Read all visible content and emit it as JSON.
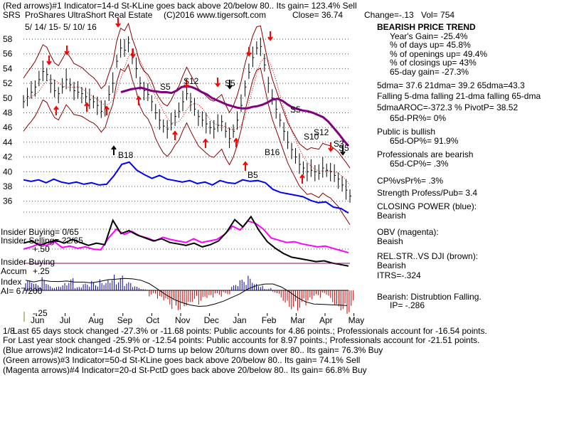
{
  "header": {
    "line1": "(Red arrows)#1 Indicator=14-d St-KLine goes back above 20/below 80.. Its gain= 123.4% Sell",
    "ticker": "SRS",
    "name": "ProShares UltraShort Real Estate",
    "copyright": "(C)2016 www.tigersoft.com",
    "close": "Close=  36.74",
    "change": "Change=-.13",
    "vol": "Vol= 754",
    "date_range": "5/ 14/ 15- 5/ 10/ 16"
  },
  "side_panel": {
    "trend_title": "BEARISH PRICE TREND",
    "years_gain": "Year's Gain= -25.4%",
    "pct_days_up": "% of days up= 45.8%",
    "pct_openings_up": "% of openings up= 49.4%",
    "pct_closings_up": "% of closings up= 43%",
    "gain_65d": "65-day gain= -27.3%",
    "dma": "5dma= 37.6  21dma= 39.2  65dma=43.3",
    "falling": "Falling 5-dma  falling 21-dma  falling 65-dma",
    "aroc": "5dmaAROC=-372.3 %   PivotP= 38.52",
    "pr": "65d-PR%= 0%",
    "public": "Public is bullish",
    "op": "65d-OP%= 91.9%",
    "professionals": "Professionals are bearish",
    "cp": "65d-CP%= .3%",
    "cpvspr": "CP%vsPr%=  .3%",
    "strength": "Strength Profess/Pub= 3.4",
    "closing_power_label": "CLOSING POWER (blue):",
    "closing_power_value": "Bearish",
    "obv_label": "OBV (magenta):",
    "obv_value": "Beaish",
    "relstr_label": "REL.STR..VS DJI (brown):",
    "relstr_value": "Bearish",
    "itrs": "ITRS=-.324",
    "accum_label": "Bearish: Distrubtion Falling.",
    "ip": "IP= -.286"
  },
  "left_labels": {
    "insider_buying_ratio": "Insider Buying= 0/65",
    "insider_selling_ratio": "Insider Selling= 22/65",
    "plus_50": "+.50",
    "insider_buying": "Insider Buying",
    "accum": "Accum",
    "plus_25": "+.25",
    "index": "Index",
    "ai": "AI= 67/200",
    "minus_25": "-.25"
  },
  "signal_labels": {
    "s5": "S5",
    "s12": "S12",
    "b18": "B18",
    "b5": "B5",
    "b16": "B16",
    "s10": "S10",
    "s3": "S3"
  },
  "bottom_text": {
    "line1": "Last 65 days stock changed -27.3% or -11.68 points:  Public accounts for  4.86 points.;  Professionals account for -16.54 points.",
    "line2": "For Last year stock changed -25.9% or -12.54 points:  Public accounts for  8.97 points.;  Professionals account for -21.51 points.",
    "line3": "(Blue arrows)#2 Indicator=14-d St-Pct-D turns up below 20/turns down over 80.. Its gain= 76.3% Buy",
    "line4": "(Green arrows)#3 Indicator=50-d St-KLine goes back above 20/below 80.. Its gain= 74.1% Sell",
    "line5": "(Magenta arrows)#4 Indicator=20-d St-PctD goes back above 20/below 80.. Its gain= 66.8% Buy",
    "overlap": "1/8"
  },
  "chart_data": {
    "type": "line",
    "ylim": [
      35,
      59
    ],
    "y_ticks": [
      36,
      38,
      40,
      42,
      44,
      46,
      48,
      50,
      52,
      54,
      56,
      58
    ],
    "x_ticks": [
      "Jun",
      "Jul",
      "Aug",
      "Sep",
      "Oct",
      "Nov",
      "Dec",
      "Jan",
      "Feb",
      "Mar",
      "Apr",
      "May"
    ],
    "grid": true,
    "colors": {
      "price": "#000000",
      "ma": "#800080",
      "bands": "#8b0000",
      "closing_power": "#0000ff",
      "obv": "#ff00ff",
      "relstr": "#000000",
      "arrows_red": "#ff0000",
      "accum_pos": "#0000aa",
      "accum_neg": "#cc0000",
      "grid": "#008000"
    },
    "price_series": [
      49.5,
      50.2,
      50.8,
      51.5,
      52.5,
      53.6,
      53.2,
      52.0,
      51.0,
      50.6,
      51.5,
      52.5,
      51.8,
      51.0,
      50.8,
      50.6,
      50.2,
      49.8,
      49.5,
      49.0,
      48.2,
      48.8,
      50.5,
      52.0,
      55.0,
      56.8,
      56.5,
      57.5,
      55.5,
      54.0,
      52.0,
      51.0,
      50.5,
      49.5,
      48.0,
      47.0,
      46.2,
      45.8,
      46.5,
      47.5,
      48.2,
      49.5,
      50.6,
      49.5,
      48.5,
      47.5,
      47.0,
      46.5,
      46.0,
      45.8,
      46.3,
      46.8,
      45.5,
      44.5,
      45.5,
      47.0,
      49.0,
      51.5,
      53.5,
      55.5,
      56.8,
      57.0,
      54.5,
      52.0,
      50.0,
      48.5,
      47.0,
      45.5,
      44.0,
      43.0,
      42.0,
      41.0,
      40.5,
      40.0,
      40.2,
      40.0,
      39.8,
      40.5,
      40.2,
      40.0,
      39.5,
      39.0,
      38.2,
      37.5,
      36.7
    ],
    "price_dates_note": "",
    "ma_series": [
      50.8,
      51.0,
      51.2,
      51.3,
      51.4,
      51.2,
      51.0,
      50.9,
      50.8,
      50.8,
      50.7,
      51.0,
      51.5,
      51.6,
      51.5,
      51.2,
      50.8,
      50.5,
      50.0,
      49.7,
      49.4,
      49.1,
      48.9,
      48.7,
      48.6,
      48.6,
      48.8,
      48.9,
      49.1,
      49.4,
      49.8,
      49.9,
      49.6,
      49.1,
      48.7,
      48.5,
      48.3,
      48.2,
      48.0,
      47.7,
      47.4,
      46.8,
      46.0,
      45.2,
      44.3,
      43.5
    ],
    "closing_power_series": [
      38.9,
      38.7,
      38.9,
      38.5,
      39.0,
      38.6,
      38.4,
      38.6,
      38.3,
      38.5,
      38.2,
      38.3,
      39.5,
      41.0,
      41.3,
      40.2,
      39.6,
      39.1,
      39.5,
      39.0,
      38.8,
      38.6,
      38.8,
      38.4,
      38.6,
      38.2,
      38.8,
      38.5,
      38.4,
      38.9,
      38.7,
      38.8,
      38.5,
      37.6,
      37.2,
      37.0,
      36.8,
      36.6,
      36.1,
      35.8,
      35.9,
      35.2,
      35.0,
      34.4
    ],
    "obv_series": [
      29.5,
      29.8,
      30.2,
      30.0,
      30.5,
      29.7,
      29.9,
      29.6,
      29.8,
      29.5,
      29.4,
      31.0,
      32.2,
      31.5,
      31.9,
      31.3,
      31.0,
      30.6,
      31.1,
      30.8,
      30.6,
      30.4,
      30.9,
      30.4,
      30.6,
      30.8,
      31.5,
      32.6,
      32.1,
      33.3,
      33.0,
      32.2,
      31.0,
      30.7,
      30.4,
      30.5,
      30.2,
      30.0,
      29.8,
      29.9,
      29.6,
      29.3,
      29.0
    ],
    "relstr_series": [
      30.3,
      30.6,
      30.0,
      30.4,
      30.7,
      30.3,
      30.8,
      30.4,
      30.0,
      30.3,
      30.1,
      33.4,
      31.6,
      32.0,
      31.4,
      31.0,
      30.6,
      30.9,
      30.4,
      30.2,
      30.0,
      30.3,
      29.8,
      30.1,
      30.6,
      31.8,
      33.5,
      32.5,
      33.9,
      32.0,
      30.5,
      29.6,
      28.9,
      28.4,
      28.2,
      28.0,
      27.8,
      27.9,
      27.6,
      27.4,
      27.2
    ],
    "accum_values": [
      0.15,
      0.1,
      0.2,
      0.08,
      0.12,
      0.18,
      0.05,
      0.1,
      0.14,
      0.2,
      0.28,
      0.22,
      0.12,
      0.06,
      0.02,
      -0.1,
      -0.2,
      -0.28,
      -0.3,
      -0.24,
      -0.18,
      -0.22,
      -0.16,
      -0.1,
      -0.06,
      0.08,
      0.16,
      0.22,
      0.12,
      0.04,
      -0.05,
      -0.18,
      -0.28,
      -0.3,
      -0.26,
      -0.14,
      -0.08,
      -0.22,
      -0.3,
      -0.35
    ]
  }
}
